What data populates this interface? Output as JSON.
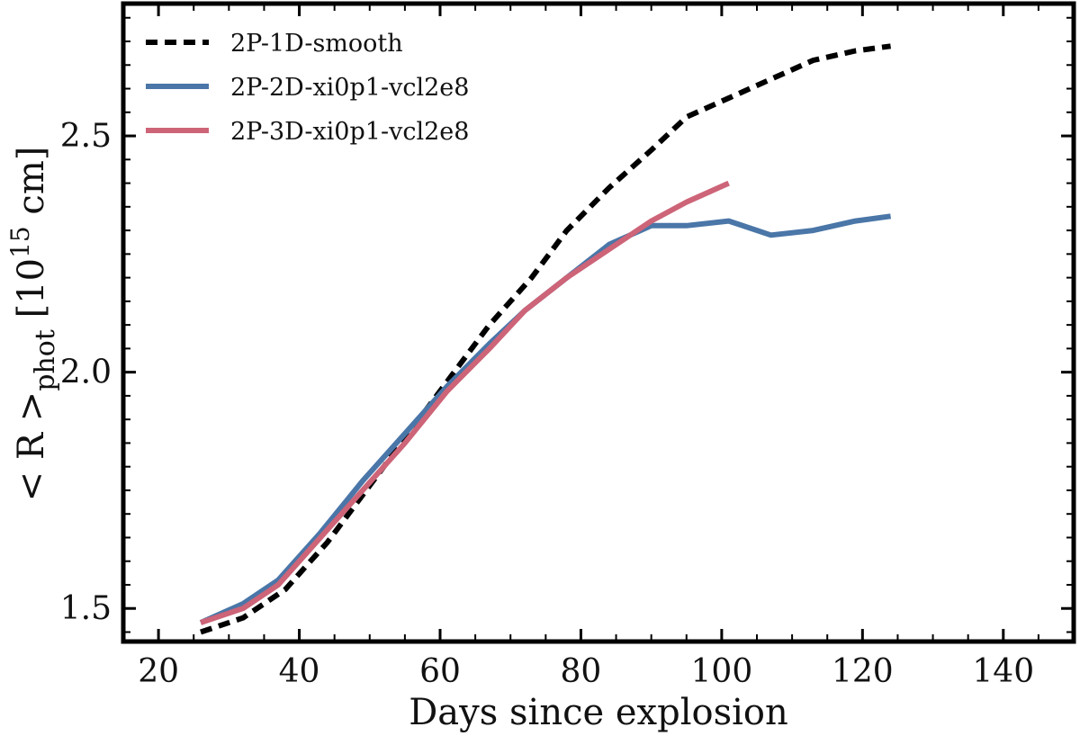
{
  "chart_data": {
    "type": "line",
    "xlabel": "Days since explosion",
    "ylabel_main": "< R >",
    "ylabel_sub": "phot",
    "ylabel_unit_pre": " [10",
    "ylabel_unit_sup": "15",
    "ylabel_unit_post": " cm]",
    "xlim": [
      15,
      150
    ],
    "ylim": [
      1.43,
      2.78
    ],
    "xticks": [
      20,
      40,
      60,
      80,
      100,
      120,
      140
    ],
    "xtick_labels": [
      "20",
      "40",
      "60",
      "80",
      "100",
      "120",
      "140"
    ],
    "yticks": [
      1.5,
      2.0,
      2.5
    ],
    "ytick_labels": [
      "1.5",
      "2.0",
      "2.5"
    ],
    "legend_position": "top-left",
    "series": [
      {
        "name": "2P-1D-smooth",
        "color": "#000000",
        "style": "dashed",
        "x": [
          26,
          32,
          38,
          44,
          50,
          56,
          62,
          67,
          73,
          78,
          84,
          90,
          95,
          101,
          107,
          113,
          119,
          124
        ],
        "y": [
          1.45,
          1.48,
          1.54,
          1.64,
          1.76,
          1.88,
          2.0,
          2.1,
          2.2,
          2.3,
          2.39,
          2.47,
          2.54,
          2.58,
          2.62,
          2.66,
          2.68,
          2.69
        ]
      },
      {
        "name": "2P-2D-xi0p1-vcl2e8",
        "color": "#4a76a8",
        "style": "solid",
        "x": [
          26,
          32,
          37,
          43,
          49,
          55,
          61,
          67,
          72,
          78,
          84,
          90,
          95,
          101,
          107,
          113,
          119,
          124
        ],
        "y": [
          1.47,
          1.51,
          1.56,
          1.66,
          1.77,
          1.87,
          1.97,
          2.06,
          2.13,
          2.2,
          2.27,
          2.31,
          2.31,
          2.32,
          2.29,
          2.3,
          2.32,
          2.33
        ]
      },
      {
        "name": "2P-3D-xi0p1-vcl2e8",
        "color": "#cd6478",
        "style": "solid",
        "x": [
          26,
          32,
          37,
          43,
          49,
          55,
          61,
          67,
          72,
          78,
          84,
          90,
          95,
          101
        ],
        "y": [
          1.47,
          1.5,
          1.55,
          1.65,
          1.75,
          1.85,
          1.96,
          2.05,
          2.13,
          2.2,
          2.26,
          2.32,
          2.36,
          2.4
        ]
      }
    ]
  }
}
